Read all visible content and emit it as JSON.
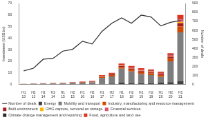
{
  "chart_data": {
    "type": "bar",
    "stacked": true,
    "grid": false,
    "legend": "bottom",
    "y_label": "Investment (US$ bn)",
    "y2_label": "Number of deals",
    "categories": [
      "H1 13",
      "H2 13",
      "H1 14",
      "H2 14",
      "H1 15",
      "H2 15",
      "H1 16",
      "H2 16",
      "H1 17",
      "H2 17",
      "H1 18",
      "H2 18",
      "H1 19",
      "H2 19",
      "H1 20",
      "H2 20",
      "H1 21"
    ],
    "ylim": [
      0,
      70
    ],
    "yticks": [
      0,
      10,
      20,
      30,
      40,
      50,
      60,
      70
    ],
    "y2lim": [
      0,
      900
    ],
    "y2ticks": [
      0,
      100,
      200,
      300,
      400,
      500,
      600,
      700,
      800,
      900
    ],
    "series": [
      {
        "name": "Number of deals",
        "type": "line",
        "axis": "y2",
        "color": "#2d2d2d",
        "values": [
          150,
          180,
          280,
          290,
          370,
          390,
          480,
          450,
          590,
          680,
          740,
          680,
          770,
          750,
          650,
          690,
          710
        ]
      },
      {
        "name": "Energy",
        "color": "#404041",
        "values": [
          0.1,
          0.1,
          0.2,
          0.2,
          0.2,
          0.3,
          0.3,
          0.3,
          0.5,
          0.8,
          1.5,
          1.2,
          1.0,
          1.0,
          1.5,
          2.0,
          3.0
        ]
      },
      {
        "name": "Mobility and transport",
        "color": "#7d7d7d",
        "values": [
          0.2,
          0.3,
          0.4,
          0.5,
          0.6,
          0.9,
          1.2,
          1.5,
          5.0,
          6.0,
          12.0,
          10.0,
          8.0,
          7.0,
          5.0,
          18.0,
          42.0
        ]
      },
      {
        "name": "Industry, manufacturing and resource management",
        "color": "#d04a02",
        "values": [
          0.1,
          0.1,
          0.2,
          0.2,
          0.3,
          0.3,
          0.4,
          0.5,
          1.0,
          1.2,
          1.5,
          1.5,
          1.5,
          1.5,
          1.5,
          2.5,
          5.0
        ]
      },
      {
        "name": "Built environment",
        "color": "#a32020",
        "values": [
          0,
          0.05,
          0.05,
          0.1,
          0.1,
          0.1,
          0.2,
          0.2,
          0.5,
          0.6,
          1.0,
          1.0,
          1.0,
          1.0,
          1.0,
          1.5,
          3.0
        ]
      },
      {
        "name": "GHG capture, removal an storage",
        "color": "#ffb600",
        "values": [
          0,
          0,
          0,
          0,
          0,
          0,
          0,
          0,
          0.1,
          0.1,
          0.2,
          0.2,
          0.2,
          0.2,
          0.3,
          0.3,
          1.0
        ]
      },
      {
        "name": "Financial services",
        "color": "#db536a",
        "values": [
          0,
          0,
          0,
          0.05,
          0.1,
          0.1,
          0.1,
          0.1,
          0.3,
          0.3,
          0.5,
          0.5,
          0.8,
          0.8,
          0.5,
          1.0,
          2.0
        ]
      },
      {
        "name": "Climate change management and reporting",
        "color": "#2d2d2d",
        "values": [
          0,
          0,
          0,
          0,
          0,
          0,
          0,
          0.05,
          0.1,
          0.1,
          0.2,
          0.2,
          0.2,
          0.2,
          0.2,
          0.3,
          0.5
        ]
      },
      {
        "name": "Food, agriculture and land use",
        "color": "#e0301e",
        "values": [
          0.1,
          0.15,
          0.15,
          0.15,
          0.2,
          0.3,
          0.3,
          0.35,
          0.5,
          0.9,
          1.1,
          1.4,
          1.3,
          1.3,
          1.0,
          1.4,
          3.5
        ]
      }
    ]
  }
}
